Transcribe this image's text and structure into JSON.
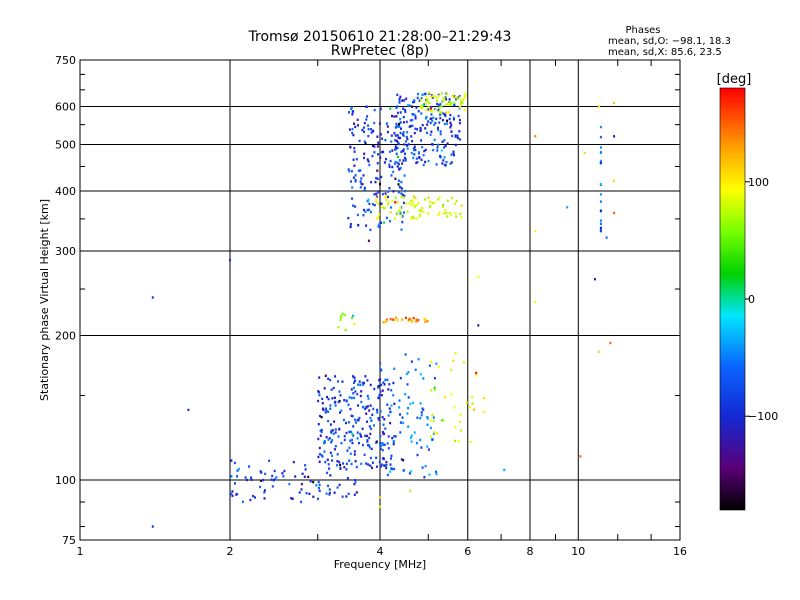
{
  "chart_data": {
    "type": "scatter",
    "title": "Tromsø 20150610 21:28:00–21:29:43",
    "subtitle": "RwPretec (8p)",
    "xlabel": "Frequency [MHz]",
    "ylabel": "Stationary phase Virtual Height [km]",
    "x_scale": "log",
    "y_scale": "log",
    "xlim": [
      1,
      16
    ],
    "ylim": [
      75,
      750
    ],
    "x_ticks": [
      1,
      2,
      4,
      6,
      8,
      10,
      16
    ],
    "x_tick_labels": [
      "1",
      "2",
      "4",
      "6",
      "8",
      "10",
      "16"
    ],
    "y_ticks": [
      75,
      100,
      200,
      300,
      400,
      500,
      600,
      750
    ],
    "y_tick_labels": [
      "75",
      "100",
      "200",
      "300",
      "400",
      "500",
      "600",
      "750"
    ],
    "grid": true,
    "phase_stats": {
      "heading": "Phases",
      "line_o": "mean, sd,O: −98.1, 18.3",
      "line_x": "mean, sd,X:  85.6, 23.5"
    },
    "colorbar": {
      "title": "[deg]",
      "range": [
        -180,
        180
      ],
      "tick_values": [
        100,
        0,
        -100
      ],
      "tick_labels": [
        "100",
        "0",
        "−100"
      ],
      "colormap": "rainbow (black-purple-blue-cyan-green-yellow-orange-red)"
    },
    "series": [
      {
        "name": "",
        "point_groups": [
          {
            "freq_range": [
              2.0,
              3.6
            ],
            "height_range": [
              90,
              110
            ],
            "phase_mean": -105,
            "count": 90
          },
          {
            "freq_range": [
              3.0,
              4.3
            ],
            "height_range": [
              105,
              165
            ],
            "phase_mean": -105,
            "count": 260
          },
          {
            "freq_range": [
              4.0,
              5.2
            ],
            "height_range": [
              100,
              185
            ],
            "phase_mean": -80,
            "count": 90
          },
          {
            "freq_range": [
              5.0,
              6.5
            ],
            "height_range": [
              120,
              185
            ],
            "phase_mean": 90,
            "count": 35
          },
          {
            "freq_range": [
              3.3,
              3.6
            ],
            "height_range": [
              205,
              222
            ],
            "phase_mean": 40,
            "count": 10
          },
          {
            "freq_range": [
              4.0,
              5.0
            ],
            "height_range": [
              213,
              218
            ],
            "phase_mean": 135,
            "count": 25
          },
          {
            "freq_range": [
              3.45,
              4.5
            ],
            "height_range": [
              330,
              600
            ],
            "phase_mean": -105,
            "count": 200
          },
          {
            "freq_range": [
              4.3,
              5.8
            ],
            "height_range": [
              450,
              640
            ],
            "phase_mean": -100,
            "count": 220
          },
          {
            "freq_range": [
              4.8,
              6.0
            ],
            "height_range": [
              580,
              640
            ],
            "phase_mean": 80,
            "count": 60
          },
          {
            "freq_range": [
              3.9,
              5.9
            ],
            "height_range": [
              350,
              390
            ],
            "phase_mean": 85,
            "count": 80
          }
        ],
        "isolated_points": [
          {
            "x": 1.4,
            "y": 240,
            "phase": -110
          },
          {
            "x": 1.4,
            "y": 80,
            "phase": -110
          },
          {
            "x": 1.65,
            "y": 140,
            "phase": -110
          },
          {
            "x": 2.0,
            "y": 287,
            "phase": -110
          },
          {
            "x": 8.2,
            "y": 520,
            "phase": 140
          },
          {
            "x": 8.2,
            "y": 330,
            "phase": 100
          },
          {
            "x": 8.2,
            "y": 235,
            "phase": 90
          },
          {
            "x": 9.5,
            "y": 370,
            "phase": -60
          },
          {
            "x": 10.1,
            "y": 112,
            "phase": 150
          },
          {
            "x": 10.3,
            "y": 480,
            "phase": 110
          },
          {
            "x": 10.8,
            "y": 262,
            "phase": -140
          },
          {
            "x": 11.0,
            "y": 600,
            "phase": 100
          },
          {
            "x": 11.0,
            "y": 185,
            "phase": 110
          },
          {
            "x": 11.8,
            "y": 520,
            "phase": -140
          },
          {
            "x": 11.8,
            "y": 420,
            "phase": 110
          },
          {
            "x": 11.8,
            "y": 360,
            "phase": 150
          },
          {
            "x": 11.8,
            "y": 610,
            "phase": 120
          },
          {
            "x": 11.6,
            "y": 193,
            "phase": 150
          },
          {
            "x": 11.4,
            "y": 320,
            "phase": -80
          },
          {
            "x": 6.3,
            "y": 265,
            "phase": 90
          },
          {
            "x": 7.1,
            "y": 105,
            "phase": -60
          },
          {
            "x": 6.3,
            "y": 210,
            "phase": -130
          },
          {
            "x": 4.0,
            "y": 92,
            "phase": 110
          },
          {
            "x": 4.0,
            "y": 88,
            "phase": 80
          },
          {
            "x": 4.6,
            "y": 95,
            "phase": 60
          },
          {
            "x": 3.8,
            "y": 315,
            "phase": -150
          }
        ],
        "vertical_streak": {
          "x": 11.1,
          "height_range": [
            330,
            580
          ],
          "phase_mean": -80
        }
      }
    ]
  }
}
